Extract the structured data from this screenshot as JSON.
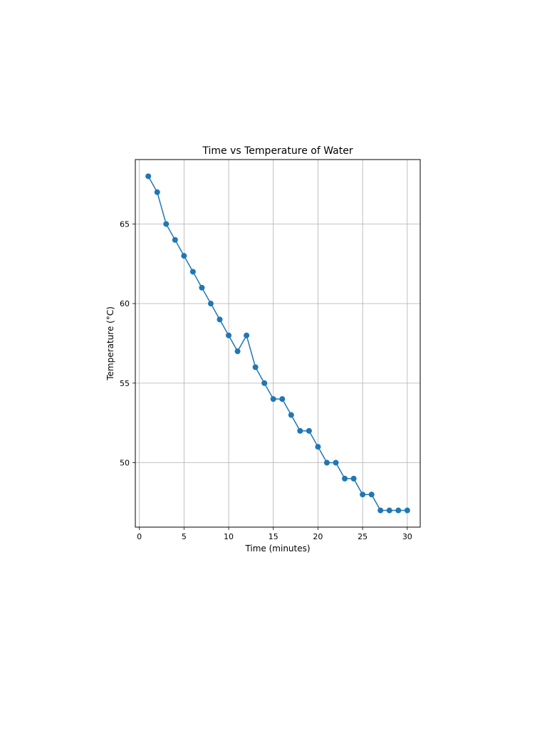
{
  "chart_data": {
    "type": "line",
    "title": "Time vs Temperature of Water",
    "xlabel": "Time (minutes)",
    "ylabel": "Temperature (°C)",
    "xlim": [
      -0.45,
      31.45
    ],
    "ylim": [
      45.95,
      69.05
    ],
    "xticks": [
      0,
      5,
      10,
      15,
      20,
      25,
      30
    ],
    "yticks": [
      50,
      55,
      60,
      65
    ],
    "grid": true,
    "marker": "circle",
    "color": "#1f77b4",
    "series": [
      {
        "x": [
          1,
          2,
          3,
          4,
          5,
          6,
          7,
          8,
          9,
          10,
          11,
          12,
          13,
          14,
          15,
          16,
          17,
          18,
          19,
          20,
          21,
          22,
          23,
          24,
          25,
          26,
          27,
          28,
          29,
          30
        ],
        "values": [
          68,
          67,
          65,
          64,
          63,
          62,
          61,
          60,
          59,
          58,
          57,
          58,
          56,
          55,
          54,
          54,
          53,
          52,
          52,
          51,
          50,
          50,
          49,
          49,
          48,
          48,
          47,
          47,
          47,
          47
        ]
      }
    ]
  }
}
